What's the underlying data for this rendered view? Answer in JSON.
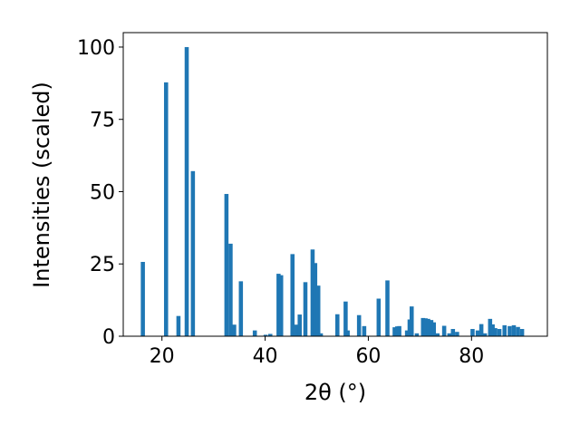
{
  "chart_data": {
    "type": "bar",
    "xlabel": "2θ (°)",
    "ylabel": "Intensities (scaled)",
    "xlim": [
      12.5,
      94.7
    ],
    "ylim": [
      0,
      105
    ],
    "xticks": [
      20,
      40,
      60,
      80
    ],
    "yticks": [
      0,
      25,
      50,
      75,
      100
    ],
    "bar_color": "#1f77b4",
    "bar_width_deg": 0.8,
    "grid": false,
    "x": [
      16.3,
      20.8,
      23.2,
      24.8,
      26.0,
      32.5,
      33.3,
      34.0,
      35.3,
      38.0,
      40.1,
      41.0,
      42.6,
      43.1,
      45.3,
      46.1,
      46.7,
      47.8,
      49.2,
      49.7,
      50.3,
      50.8,
      54.0,
      55.6,
      56.0,
      58.2,
      59.2,
      62.0,
      63.7,
      65.1,
      65.6,
      66.0,
      67.5,
      68.0,
      68.4,
      69.4,
      70.6,
      71.1,
      71.6,
      72.2,
      72.7,
      73.4,
      74.7,
      75.7,
      76.4,
      77.2,
      80.2,
      81.2,
      81.9,
      82.6,
      83.6,
      84.1,
      84.6,
      85.4,
      86.4,
      87.4,
      88.2,
      89.0,
      89.8
    ],
    "values": [
      25.7,
      87.8,
      7.0,
      100.0,
      57.1,
      49.2,
      32.0,
      4.0,
      19.0,
      2.0,
      0.5,
      0.8,
      21.6,
      21.1,
      28.4,
      4.0,
      7.5,
      18.7,
      30.0,
      25.3,
      17.5,
      1.0,
      7.6,
      12.0,
      2.0,
      7.3,
      3.5,
      13.0,
      19.3,
      3.1,
      3.4,
      3.5,
      2.0,
      5.8,
      10.3,
      1.0,
      6.3,
      6.2,
      6.0,
      5.6,
      4.8,
      1.0,
      3.6,
      1.0,
      2.5,
      1.5,
      2.5,
      2.0,
      4.2,
      1.0,
      6.0,
      4.1,
      2.8,
      2.5,
      3.8,
      3.5,
      3.8,
      3.2,
      2.5
    ]
  }
}
